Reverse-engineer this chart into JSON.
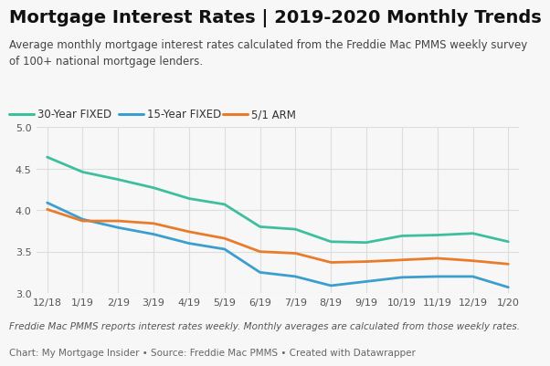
{
  "title": "Mortgage Interest Rates | 2019-2020 Monthly Trends",
  "subtitle": "Average monthly mortgage interest rates calculated from the Freddie Mac PMMS weekly survey\nof 100+ national mortgage lenders.",
  "footnote1": "Freddie Mac PMMS reports interest rates weekly. Monthly averages are calculated from those weekly rates.",
  "footnote2": "Chart: My Mortgage Insider • Source: Freddie Mac PMMS • Created with Datawrapper",
  "x_labels": [
    "12/18",
    "1/19",
    "2/19",
    "3/19",
    "4/19",
    "5/19",
    "6/19",
    "7/19",
    "8/19",
    "9/19",
    "10/19",
    "11/19",
    "12/19",
    "1/20"
  ],
  "series_30yr": [
    4.64,
    4.46,
    4.37,
    4.27,
    4.14,
    4.07,
    3.8,
    3.77,
    3.62,
    3.61,
    3.69,
    3.7,
    3.72,
    3.62
  ],
  "series_15yr": [
    4.09,
    3.89,
    3.79,
    3.71,
    3.6,
    3.53,
    3.25,
    3.2,
    3.09,
    3.14,
    3.19,
    3.2,
    3.2,
    3.07
  ],
  "series_arm": [
    4.01,
    3.87,
    3.87,
    3.84,
    3.74,
    3.66,
    3.5,
    3.48,
    3.37,
    3.38,
    3.4,
    3.42,
    3.39,
    3.35
  ],
  "color_30yr": "#3dbf9e",
  "color_15yr": "#3b9ecf",
  "color_arm": "#e87c2a",
  "legend_labels": [
    "30-Year FIXED",
    "15-Year FIXED",
    "5/1 ARM"
  ],
  "ylim": [
    3.0,
    5.0
  ],
  "yticks": [
    3.0,
    3.5,
    4.0,
    4.5,
    5.0
  ],
  "bg_color": "#f7f7f7",
  "plot_bg": "#f7f7f7",
  "grid_color": "#dddddd",
  "title_fontsize": 14,
  "subtitle_fontsize": 8.5,
  "footnote_fontsize": 7.5,
  "tick_fontsize": 8,
  "legend_fontsize": 8.5,
  "line_width": 2.0
}
